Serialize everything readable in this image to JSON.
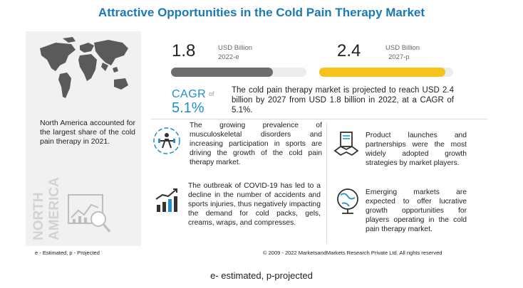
{
  "title": "Attractive Opportunities in the Cold Pain Therapy Market",
  "left_panel": {
    "note": "North America accounted for the largest share of the cold pain therapy in 2021.",
    "region_label_line1": "NORTH",
    "region_label_line2": "AMERICA"
  },
  "metric_2022": {
    "value": "1.8",
    "unit": "USD Billion",
    "year": "2022-e",
    "fill_fraction": 0.75,
    "color": "#6d6d6d"
  },
  "metric_2027": {
    "value": "2.4",
    "unit": "USD Billion",
    "year": "2027-p",
    "fill_fraction": 0.94,
    "color": "#f7c21a"
  },
  "cagr": {
    "label": "CAGR",
    "of": "of",
    "value": "5.1%"
  },
  "summary": "The cold pain therapy market is projected to reach USD 2.4 billion by 2027 from USD 1.8 billion in 2022, at a CAGR of 5.1%.",
  "insights": {
    "driver": "The growing prevalence of musculoskeletal disorders and increasing participation in sports are driving the growth of the cold pain therapy market.",
    "restraint": "The outbreak of COVID-19 has led to a decline in the number of accidents and sports injuries, thus negatively impacting the demand for cold packs, gels, creams, wraps, and compresses.",
    "strategy": "Product launches and partnerships were the most widely adopted growth strategies by market players.",
    "opportunity": "Emerging markets are expected to offer lucrative growth opportunities for players operating in the cold pain therapy market."
  },
  "footer": {
    "legend": "e - Estimated, p - Projected",
    "copyright": "© 2009 - 2022 MarketsandMarkets Research Private Ltd. All rights reserved"
  },
  "caption": "e- estimated, p-projected",
  "colors": {
    "accent_blue": "#1f8fc9",
    "title_blue": "#1a7ab7",
    "yellow": "#f7c21a",
    "gray_bar": "#6d6d6d"
  }
}
